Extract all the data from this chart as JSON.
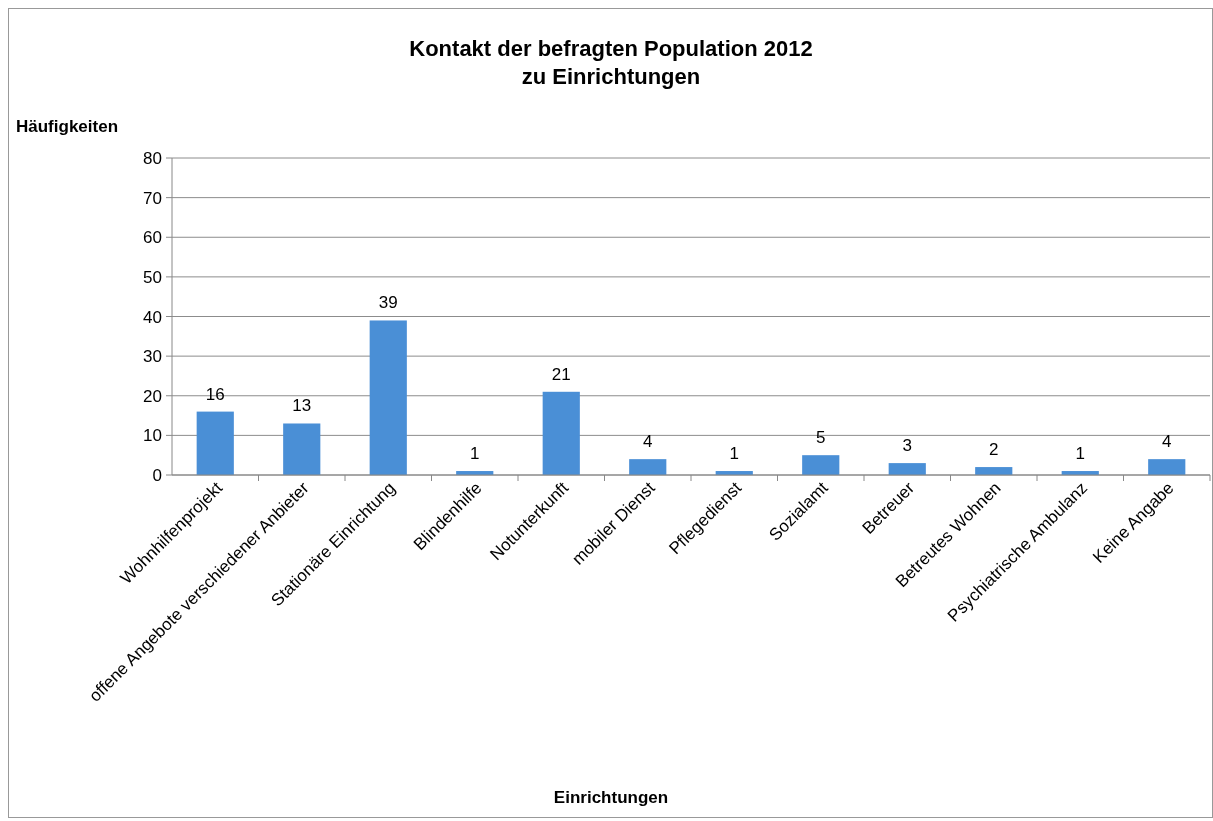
{
  "chart_data": {
    "type": "bar",
    "title": "Kontakt der befragten Population 2012\nzu Einrichtungen",
    "xlabel": "Einrichtungen",
    "ylabel": "Häufigkeiten",
    "categories": [
      "Wohnhilfenprojekt",
      "offene Angebote verschiedener Anbieter",
      "Stationäre Einrichtung",
      "Blindenhilfe",
      "Notunterkunft",
      "mobiler Dienst",
      "Pflegedienst",
      "Sozialamt",
      "Betreuer",
      "Betreutes Wohnen",
      "Psychiatrische Ambulanz",
      "Keine Angabe"
    ],
    "values": [
      16,
      13,
      39,
      1,
      21,
      4,
      1,
      5,
      3,
      2,
      1,
      4
    ],
    "color": "#4a8fd6",
    "ylim": [
      0,
      80
    ],
    "yticks": [
      0,
      10,
      20,
      30,
      40,
      50,
      60,
      70,
      80
    ],
    "grid": "y",
    "data_labels": true
  }
}
